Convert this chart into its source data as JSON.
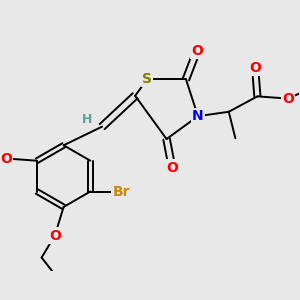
{
  "bg_color": "#e8e8e8",
  "atom_colors": {
    "S": "#808000",
    "N": "#0000ff",
    "O": "#ff0000",
    "Br": "#cc8800",
    "H": "#5f9ea0",
    "C": "#000000"
  },
  "bond_color": "#000000",
  "font_size_atom": 10,
  "font_size_small": 8.5
}
